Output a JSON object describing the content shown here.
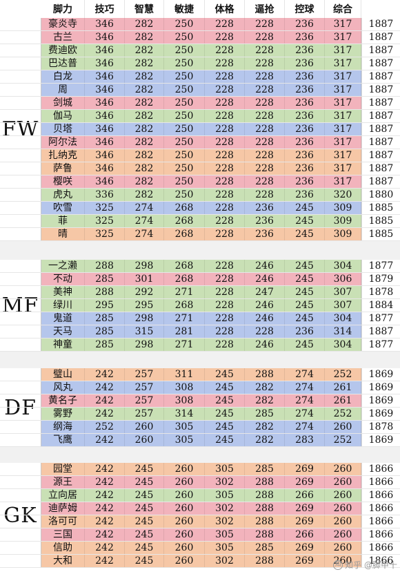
{
  "columns": [
    "",
    "脚力",
    "技巧",
    "智慧",
    "敏捷",
    "体格",
    "逼抢",
    "控球",
    "综合"
  ],
  "colors": {
    "red": "#f2b3bc",
    "green": "#c9e0b5",
    "blue": "#b5c6ec",
    "orange": "#f6c7a6",
    "gap": "#f1f1f1"
  },
  "groups": [
    {
      "label": "FW",
      "rows": [
        {
          "name": "豪炎寺",
          "values": [
            "346",
            "282",
            "250",
            "228",
            "228",
            "236",
            "317"
          ],
          "total": "1887",
          "color": "red"
        },
        {
          "name": "古兰",
          "values": [
            "346",
            "282",
            "250",
            "228",
            "228",
            "236",
            "317"
          ],
          "total": "1887",
          "color": "red"
        },
        {
          "name": "费迪欧",
          "values": [
            "346",
            "282",
            "250",
            "228",
            "228",
            "236",
            "317"
          ],
          "total": "1887",
          "color": "green"
        },
        {
          "name": "巴达普",
          "values": [
            "346",
            "282",
            "250",
            "228",
            "228",
            "236",
            "317"
          ],
          "total": "1887",
          "color": "green"
        },
        {
          "name": "白龙",
          "values": [
            "346",
            "282",
            "250",
            "228",
            "228",
            "236",
            "317"
          ],
          "total": "1887",
          "color": "blue"
        },
        {
          "name": "周",
          "values": [
            "346",
            "282",
            "250",
            "228",
            "228",
            "236",
            "317"
          ],
          "total": "1887",
          "color": "blue"
        },
        {
          "name": "剑城",
          "values": [
            "346",
            "282",
            "250",
            "228",
            "228",
            "236",
            "317"
          ],
          "total": "1887",
          "color": "red"
        },
        {
          "name": "伽马",
          "values": [
            "346",
            "282",
            "250",
            "228",
            "228",
            "236",
            "317"
          ],
          "total": "1887",
          "color": "green"
        },
        {
          "name": "贝塔",
          "values": [
            "346",
            "282",
            "250",
            "228",
            "228",
            "236",
            "317"
          ],
          "total": "1887",
          "color": "blue"
        },
        {
          "name": "阿尔法",
          "values": [
            "346",
            "282",
            "250",
            "228",
            "228",
            "236",
            "317"
          ],
          "total": "1887",
          "color": "red"
        },
        {
          "name": "扎纳克",
          "values": [
            "346",
            "282",
            "250",
            "228",
            "228",
            "236",
            "317"
          ],
          "total": "1887",
          "color": "orange"
        },
        {
          "name": "萨鲁",
          "values": [
            "346",
            "282",
            "250",
            "228",
            "228",
            "236",
            "317"
          ],
          "total": "1887",
          "color": "orange"
        },
        {
          "name": "樱咲",
          "values": [
            "346",
            "282",
            "250",
            "228",
            "228",
            "236",
            "317"
          ],
          "total": "1887",
          "color": "red"
        },
        {
          "name": "虎丸",
          "values": [
            "336",
            "282",
            "250",
            "228",
            "228",
            "236",
            "320"
          ],
          "total": "1880",
          "color": "green"
        },
        {
          "name": "吹雪",
          "values": [
            "325",
            "274",
            "268",
            "228",
            "236",
            "245",
            "309"
          ],
          "total": "1885",
          "color": "blue"
        },
        {
          "name": "菲",
          "values": [
            "325",
            "274",
            "268",
            "228",
            "236",
            "245",
            "309"
          ],
          "total": "1885",
          "color": "green"
        },
        {
          "name": "晴",
          "values": [
            "325",
            "274",
            "268",
            "228",
            "236",
            "245",
            "309"
          ],
          "total": "1885",
          "color": "orange"
        }
      ]
    },
    {
      "label": "MF",
      "rows": [
        {
          "name": "一之濑",
          "values": [
            "288",
            "298",
            "268",
            "228",
            "246",
            "245",
            "304"
          ],
          "total": "1877",
          "color": "green"
        },
        {
          "name": "不动",
          "values": [
            "285",
            "301",
            "268",
            "228",
            "246",
            "245",
            "306"
          ],
          "total": "1879",
          "color": "red"
        },
        {
          "name": "美神",
          "values": [
            "288",
            "292",
            "271",
            "228",
            "247",
            "245",
            "307"
          ],
          "total": "1878",
          "color": "green"
        },
        {
          "name": "绿川",
          "values": [
            "295",
            "295",
            "268",
            "228",
            "246",
            "245",
            "307"
          ],
          "total": "1884",
          "color": "green"
        },
        {
          "name": "鬼道",
          "values": [
            "285",
            "298",
            "271",
            "228",
            "246",
            "245",
            "304"
          ],
          "total": "1877",
          "color": "blue"
        },
        {
          "name": "天马",
          "values": [
            "285",
            "315",
            "281",
            "228",
            "228",
            "236",
            "314"
          ],
          "total": "1887",
          "color": "blue"
        },
        {
          "name": "神童",
          "values": [
            "285",
            "298",
            "271",
            "228",
            "246",
            "245",
            "304"
          ],
          "total": "1877",
          "color": "green"
        }
      ]
    },
    {
      "label": "DF",
      "rows": [
        {
          "name": "璧山",
          "values": [
            "242",
            "257",
            "311",
            "245",
            "288",
            "274",
            "252"
          ],
          "total": "1869",
          "color": "orange"
        },
        {
          "name": "风丸",
          "values": [
            "242",
            "257",
            "308",
            "245",
            "282",
            "274",
            "261"
          ],
          "total": "1869",
          "color": "blue"
        },
        {
          "name": "黄名子",
          "values": [
            "242",
            "257",
            "308",
            "245",
            "282",
            "274",
            "261"
          ],
          "total": "1869",
          "color": "red"
        },
        {
          "name": "雾野",
          "values": [
            "242",
            "257",
            "314",
            "245",
            "285",
            "274",
            "252"
          ],
          "total": "1869",
          "color": "green"
        },
        {
          "name": "纲海",
          "values": [
            "252",
            "260",
            "305",
            "245",
            "282",
            "274",
            "260"
          ],
          "total": "1878",
          "color": "blue"
        },
        {
          "name": "飞鹰",
          "values": [
            "242",
            "260",
            "305",
            "245",
            "282",
            "283",
            "252"
          ],
          "total": "1869",
          "color": "blue"
        }
      ]
    },
    {
      "label": "GK",
      "rows": [
        {
          "name": "园堂",
          "values": [
            "242",
            "245",
            "260",
            "305",
            "285",
            "269",
            "260"
          ],
          "total": "1866",
          "color": "orange"
        },
        {
          "name": "源王",
          "values": [
            "242",
            "245",
            "260",
            "302",
            "288",
            "269",
            "260"
          ],
          "total": "1866",
          "color": "red"
        },
        {
          "name": "立向居",
          "values": [
            "242",
            "245",
            "260",
            "305",
            "288",
            "266",
            "260"
          ],
          "total": "1866",
          "color": "green"
        },
        {
          "name": "迪萨姆",
          "values": [
            "242",
            "245",
            "260",
            "302",
            "288",
            "269",
            "260"
          ],
          "total": "1866",
          "color": "red"
        },
        {
          "name": "洛可可",
          "values": [
            "242",
            "245",
            "260",
            "302",
            "288",
            "269",
            "260"
          ],
          "total": "1866",
          "color": "orange"
        },
        {
          "name": "三国",
          "values": [
            "242",
            "245",
            "260",
            "305",
            "288",
            "266",
            "260"
          ],
          "total": "1866",
          "color": "red"
        },
        {
          "name": "信助",
          "values": [
            "242",
            "245",
            "260",
            "305",
            "285",
            "269",
            "260"
          ],
          "total": "1866",
          "color": "orange"
        },
        {
          "name": "大和",
          "values": [
            "242",
            "245",
            "260",
            "302",
            "288",
            "269",
            "260"
          ],
          "total": "1866",
          "color": "orange"
        }
      ]
    }
  ],
  "watermark": {
    "text": "知乎 @脚甲十",
    "icon": "zhihu-icon"
  }
}
